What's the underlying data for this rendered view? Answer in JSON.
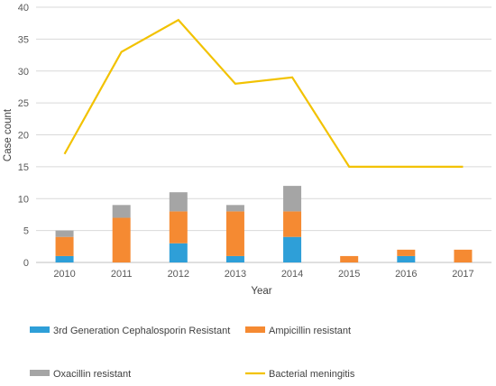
{
  "chart_data": {
    "type": "bar",
    "subtype": "stacked-bar-with-line",
    "title": "",
    "xlabel": "Year",
    "ylabel": "Case count",
    "ylim": [
      0,
      40
    ],
    "yticks": [
      0,
      5,
      10,
      15,
      20,
      25,
      30,
      35,
      40
    ],
    "grid": "horizontal",
    "legend_position": "bottom",
    "categories": [
      "2010",
      "2011",
      "2012",
      "2013",
      "2014",
      "2015",
      "2016",
      "2017"
    ],
    "series": [
      {
        "name": "3rd Generation Cephalosporin Resistant",
        "kind": "bar",
        "color": "#2e9fd8",
        "values": [
          1,
          0,
          3,
          1,
          4,
          0,
          1,
          0
        ]
      },
      {
        "name": "Ampicillin resistant",
        "kind": "bar",
        "color": "#f58a32",
        "values": [
          3,
          7,
          5,
          7,
          4,
          1,
          1,
          2
        ]
      },
      {
        "name": "Oxacillin resistant",
        "kind": "bar",
        "color": "#a5a5a5",
        "values": [
          1,
          2,
          3,
          1,
          4,
          0,
          0,
          0
        ]
      },
      {
        "name": "Bacterial meningitis",
        "kind": "line",
        "color": "#f2c200",
        "values": [
          17,
          33,
          38,
          28,
          29,
          15,
          15,
          15
        ]
      }
    ]
  }
}
